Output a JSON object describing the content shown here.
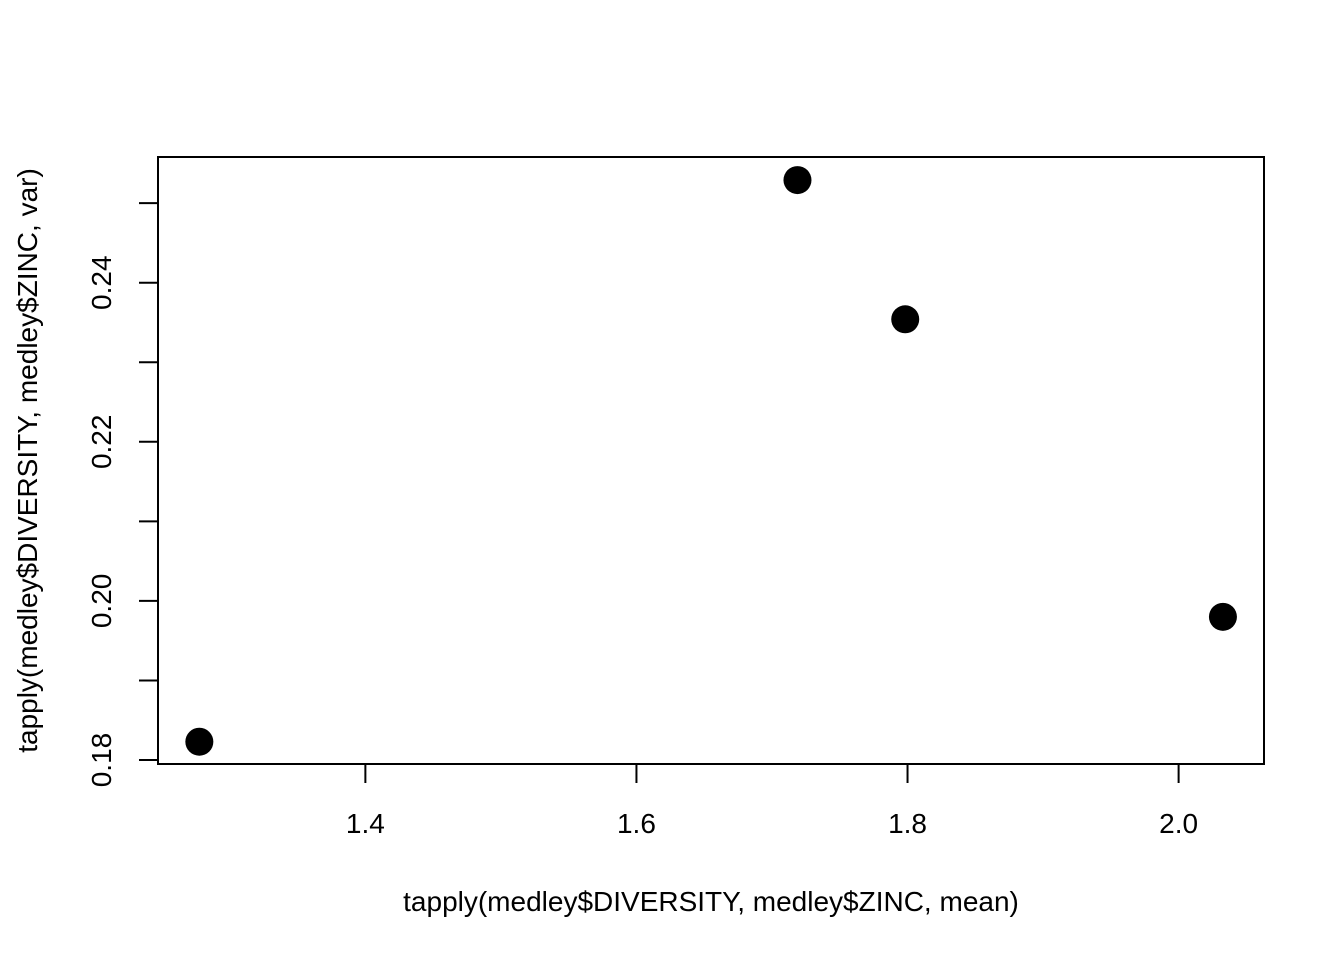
{
  "chart_data": {
    "type": "scatter",
    "title": "",
    "xlabel": "tapply(medley$DIVERSITY, medley$ZINC, mean)",
    "ylabel": "tapply(medley$DIVERSITY, medley$ZINC, var)",
    "xlim": [
      1.247,
      2.063
    ],
    "ylim": [
      0.1795,
      0.2558
    ],
    "x_ticks": [
      1.4,
      1.6,
      1.8,
      2.0
    ],
    "x_tick_labels": [
      "1.4",
      "1.6",
      "1.8",
      "2.0"
    ],
    "y_ticks": [
      0.18,
      0.19,
      0.2,
      0.21,
      0.22,
      0.23,
      0.24,
      0.25
    ],
    "y_tick_labels": [
      "0.18",
      "",
      "0.20",
      "",
      "0.22",
      "",
      "0.24",
      ""
    ],
    "grid": false,
    "legend": "none",
    "point_color": "#000000",
    "points": [
      {
        "x": 1.2775,
        "y": 0.1823
      },
      {
        "x": 1.7188,
        "y": 0.2529
      },
      {
        "x": 1.7983,
        "y": 0.2354
      },
      {
        "x": 2.0327,
        "y": 0.198
      }
    ]
  }
}
